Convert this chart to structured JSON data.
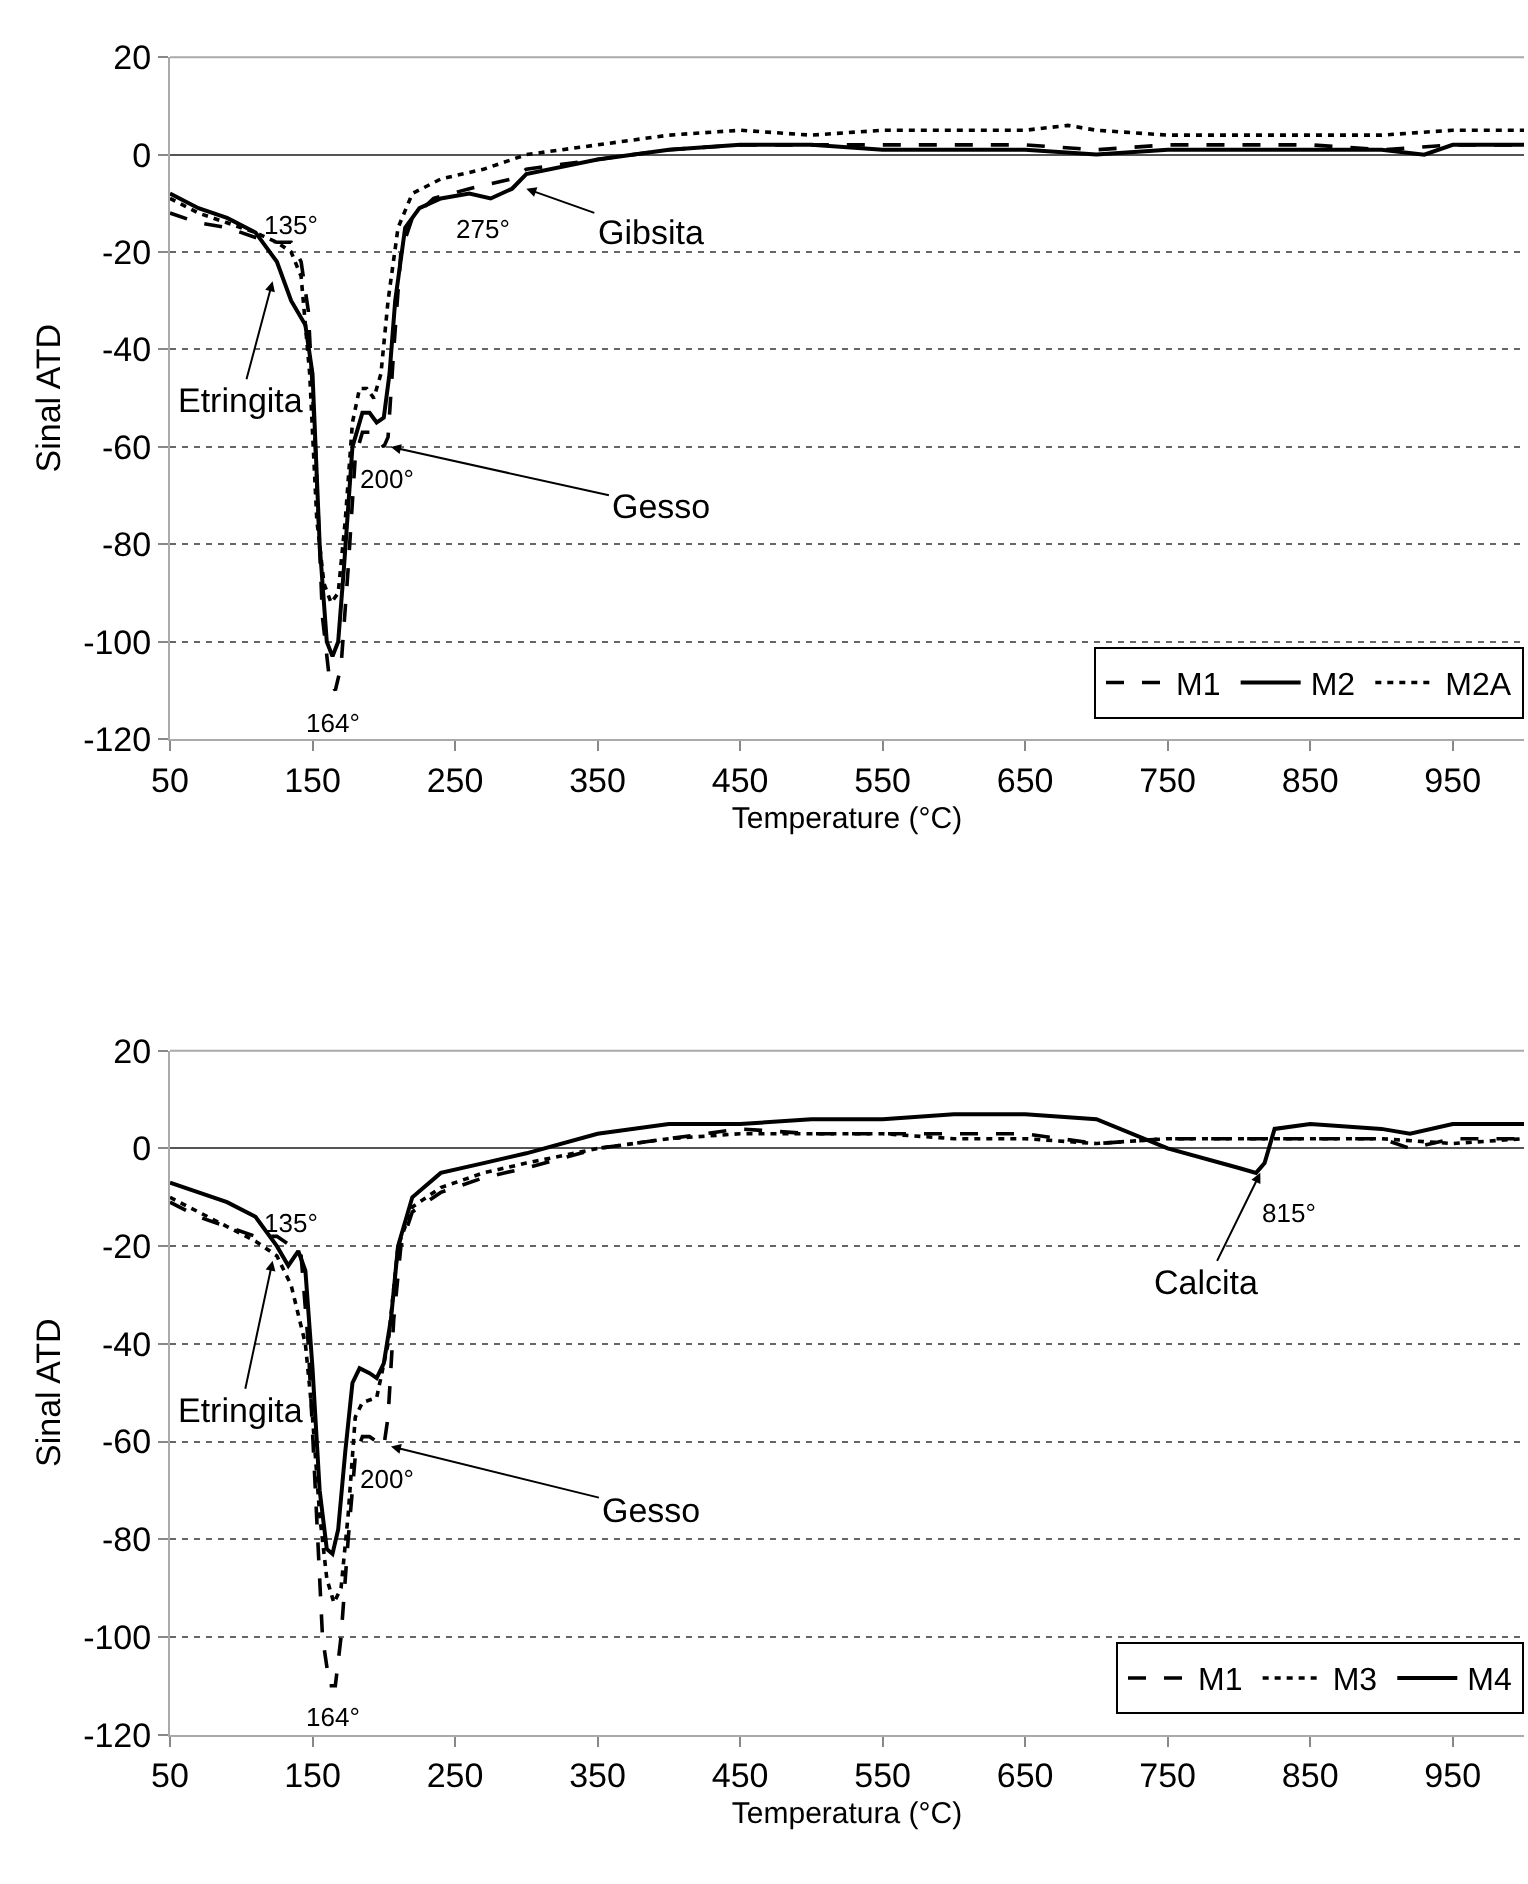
{
  "chart_data": [
    {
      "type": "line",
      "xlabel": "Temperature (°C)",
      "ylabel": "Sinal ATD",
      "xlim": [
        50,
        1000
      ],
      "xticks": [
        50,
        150,
        250,
        350,
        450,
        550,
        650,
        750,
        850,
        950
      ],
      "ylim": [
        -120,
        20
      ],
      "yticks": [
        -120,
        -100,
        -80,
        -60,
        -40,
        -20,
        0,
        20
      ],
      "grid": "y",
      "legend": "bottom right",
      "series": [
        {
          "name": "M1",
          "color": "#000000",
          "line_style": "dashed",
          "x": [
            50,
            70,
            90,
            110,
            125,
            135,
            142,
            147,
            152,
            157,
            162,
            166,
            170,
            175,
            180,
            185,
            190,
            195,
            200,
            203,
            207,
            212,
            220,
            235,
            260,
            290,
            300,
            350,
            400,
            450,
            500,
            550,
            600,
            650,
            700,
            750,
            800,
            850,
            900,
            950,
            1000
          ],
          "values": [
            -12,
            -14,
            -15,
            -17,
            -18,
            -18,
            -22,
            -32,
            -60,
            -95,
            -108,
            -110,
            -105,
            -85,
            -62,
            -57,
            -57,
            -58,
            -60,
            -58,
            -40,
            -20,
            -13,
            -9,
            -7,
            -5,
            -3,
            -1,
            1,
            2,
            2,
            2,
            2,
            2,
            1,
            2,
            2,
            2,
            1,
            2,
            2
          ]
        },
        {
          "name": "M2",
          "color": "#000000",
          "line_style": "solid",
          "x": [
            50,
            70,
            90,
            110,
            125,
            135,
            145,
            150,
            155,
            160,
            164,
            168,
            172,
            178,
            185,
            190,
            195,
            200,
            204,
            208,
            215,
            225,
            240,
            260,
            275,
            290,
            300,
            350,
            400,
            450,
            500,
            550,
            600,
            650,
            700,
            750,
            800,
            850,
            900,
            930,
            950,
            1000
          ],
          "values": [
            -8,
            -11,
            -13,
            -16,
            -22,
            -30,
            -35,
            -45,
            -80,
            -100,
            -103,
            -100,
            -85,
            -60,
            -53,
            -53,
            -55,
            -54,
            -45,
            -30,
            -15,
            -11,
            -9,
            -8,
            -9,
            -7,
            -4,
            -1,
            1,
            2,
            2,
            1,
            1,
            1,
            0,
            1,
            1,
            1,
            1,
            0,
            2,
            2
          ]
        },
        {
          "name": "M2A",
          "color": "#000000",
          "line_style": "dotted",
          "x": [
            50,
            70,
            90,
            110,
            125,
            135,
            142,
            148,
            153,
            158,
            163,
            168,
            173,
            178,
            183,
            188,
            193,
            198,
            203,
            210,
            220,
            240,
            270,
            300,
            350,
            400,
            450,
            500,
            550,
            600,
            650,
            680,
            700,
            750,
            800,
            850,
            900,
            950,
            1000
          ],
          "values": [
            -9,
            -12,
            -14,
            -16,
            -18,
            -20,
            -25,
            -45,
            -75,
            -88,
            -92,
            -90,
            -75,
            -55,
            -48,
            -48,
            -50,
            -45,
            -30,
            -15,
            -8,
            -5,
            -3,
            0,
            2,
            4,
            5,
            4,
            5,
            5,
            5,
            6,
            5,
            4,
            4,
            4,
            4,
            5,
            5
          ]
        }
      ],
      "annotations": [
        {
          "text": "135°",
          "x": 135,
          "y": -18
        },
        {
          "text": "275°",
          "x": 275,
          "y": -9
        },
        {
          "text": "Gibsita",
          "x": 300,
          "y": -7
        },
        {
          "text": "Etringita",
          "x": 122,
          "y": -26
        },
        {
          "text": "200°",
          "x": 200,
          "y": -60
        },
        {
          "text": "Gesso",
          "x": 205,
          "y": -60
        },
        {
          "text": "164°",
          "x": 164,
          "y": -110
        }
      ]
    },
    {
      "type": "line",
      "xlabel": "Temperatura (°C)",
      "ylabel": "Sinal ATD",
      "xlim": [
        50,
        1000
      ],
      "xticks": [
        50,
        150,
        250,
        350,
        450,
        550,
        650,
        750,
        850,
        950
      ],
      "ylim": [
        -120,
        20
      ],
      "yticks": [
        -120,
        -100,
        -80,
        -60,
        -40,
        -20,
        0,
        20
      ],
      "grid": "y",
      "legend": "bottom right",
      "series": [
        {
          "name": "M1",
          "color": "#000000",
          "line_style": "dashed",
          "x": [
            50,
            70,
            90,
            110,
            125,
            135,
            142,
            147,
            152,
            157,
            162,
            166,
            170,
            175,
            180,
            185,
            190,
            195,
            200,
            203,
            207,
            212,
            220,
            240,
            270,
            300,
            350,
            400,
            450,
            500,
            550,
            600,
            650,
            700,
            750,
            800,
            850,
            900,
            920,
            950,
            1000
          ],
          "values": [
            -11,
            -14,
            -16,
            -18,
            -18,
            -20,
            -22,
            -40,
            -70,
            -100,
            -110,
            -110,
            -100,
            -80,
            -63,
            -59,
            -59,
            -60,
            -61,
            -55,
            -35,
            -20,
            -13,
            -9,
            -6,
            -4,
            0,
            2,
            4,
            3,
            3,
            3,
            3,
            1,
            2,
            2,
            2,
            2,
            0,
            2,
            2
          ]
        },
        {
          "name": "M3",
          "color": "#000000",
          "line_style": "dotted",
          "x": [
            50,
            70,
            90,
            110,
            125,
            135,
            145,
            150,
            155,
            160,
            165,
            170,
            175,
            180,
            185,
            195,
            203,
            210,
            220,
            240,
            270,
            300,
            350,
            400,
            450,
            500,
            550,
            600,
            650,
            700,
            750,
            800,
            850,
            900,
            950,
            1000
          ],
          "values": [
            -10,
            -13,
            -16,
            -19,
            -22,
            -28,
            -40,
            -55,
            -75,
            -88,
            -93,
            -90,
            -75,
            -55,
            -52,
            -51,
            -40,
            -20,
            -12,
            -8,
            -5,
            -3,
            0,
            2,
            3,
            3,
            3,
            2,
            2,
            1,
            2,
            2,
            2,
            2,
            1,
            2
          ]
        },
        {
          "name": "M4",
          "color": "#000000",
          "line_style": "solid",
          "x": [
            50,
            70,
            90,
            110,
            125,
            133,
            140,
            145,
            150,
            155,
            160,
            164,
            168,
            173,
            178,
            183,
            190,
            195,
            200,
            205,
            210,
            220,
            240,
            270,
            300,
            350,
            400,
            450,
            500,
            550,
            600,
            650,
            700,
            750,
            800,
            812,
            818,
            825,
            850,
            900,
            920,
            950,
            1000
          ],
          "values": [
            -7,
            -9,
            -11,
            -14,
            -20,
            -24,
            -21,
            -25,
            -45,
            -70,
            -82,
            -83,
            -78,
            -62,
            -48,
            -45,
            -46,
            -47,
            -44,
            -35,
            -20,
            -10,
            -5,
            -3,
            -1,
            3,
            5,
            5,
            6,
            6,
            7,
            7,
            6,
            0,
            -4,
            -5,
            -3,
            4,
            5,
            4,
            3,
            5,
            5
          ]
        }
      ],
      "annotations": [
        {
          "text": "135°",
          "x": 135,
          "y": -20
        },
        {
          "text": "Etringita",
          "x": 122,
          "y": -23
        },
        {
          "text": "200°",
          "x": 200,
          "y": -61
        },
        {
          "text": "Gesso",
          "x": 205,
          "y": -61
        },
        {
          "text": "164°",
          "x": 164,
          "y": -110
        },
        {
          "text": "815°",
          "x": 815,
          "y": -5
        },
        {
          "text": "Calcita",
          "x": 815,
          "y": -5
        }
      ]
    }
  ]
}
